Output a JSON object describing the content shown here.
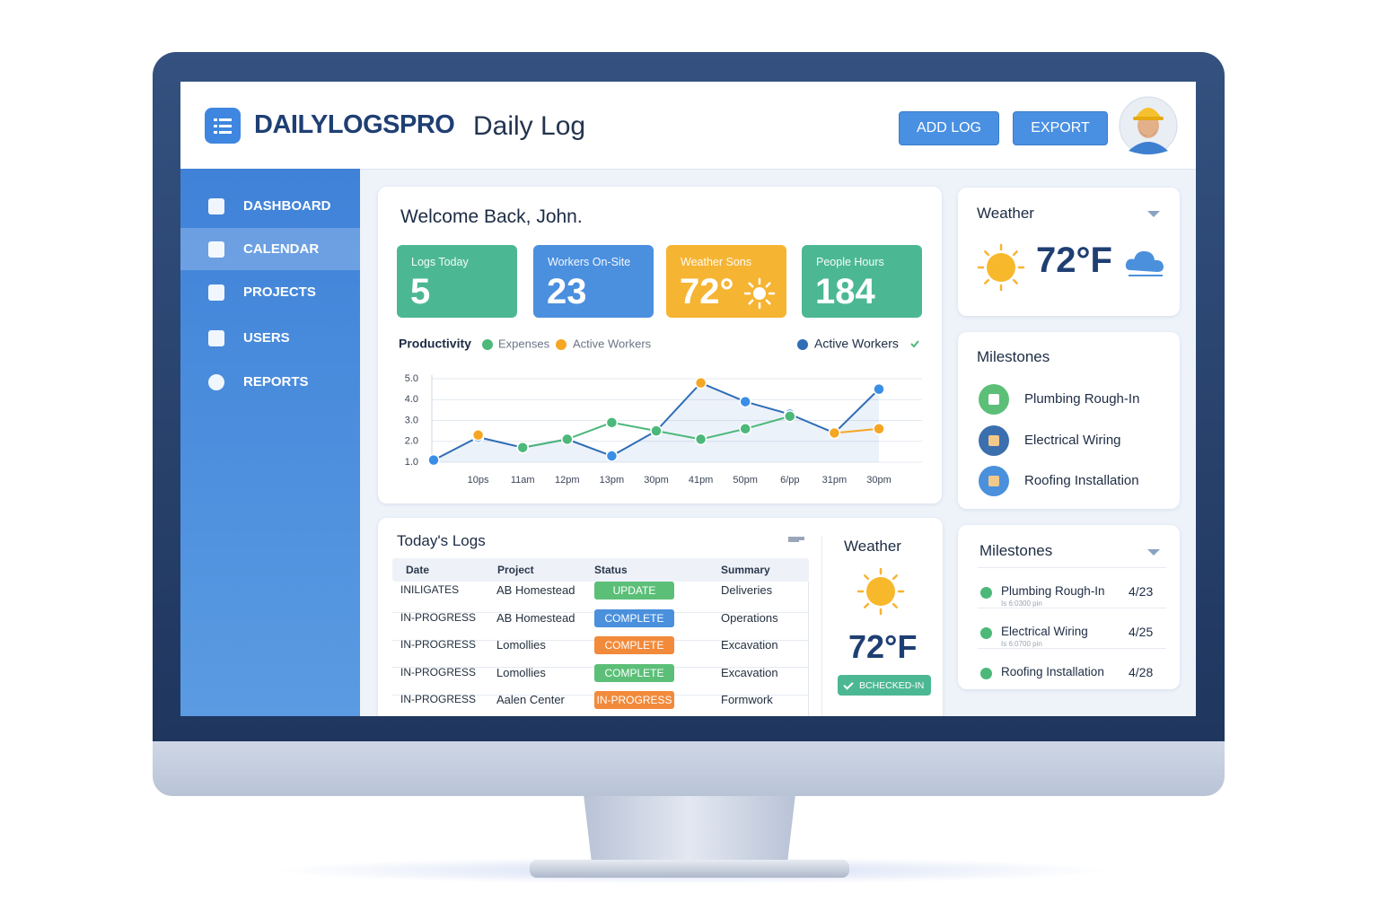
{
  "header": {
    "brand": "DAILYLOGSPRO",
    "title": "Daily Log",
    "buttons": [
      "ADD LOG",
      "EXPORT"
    ]
  },
  "sidebar": {
    "items": [
      "DASHBOARD",
      "CALENDAR",
      "PROJECTS",
      "USERS",
      "REPORTS"
    ]
  },
  "overview": {
    "greeting": "Welcome Back, John.",
    "stats": [
      {
        "label": "Logs Today",
        "value": 5,
        "color": "#4cb893"
      },
      {
        "label": "Workers On-Site",
        "value": 23,
        "color": "#4b8fdf"
      },
      {
        "label": "Weather Sons",
        "value": "72°",
        "color": "#f6b433"
      },
      {
        "label": "People Hours",
        "value": 184,
        "color": "#4cb893"
      }
    ]
  },
  "chart_data": {
    "type": "line",
    "title": "Productivity",
    "categories": [
      null,
      "10ps",
      "11am",
      "12pm",
      "13pm",
      "30pm",
      "41pm",
      "50pm",
      "6/pp",
      "31pm",
      "30pm"
    ],
    "series": [
      {
        "name": "Expenses",
        "color": "#4cb87a",
        "values": [
          null,
          null,
          1.7,
          2.1,
          2.9,
          2.5,
          2.1,
          2.6,
          3.2,
          null,
          null
        ]
      },
      {
        "name": "Active Workers",
        "color": "#f5a623",
        "values": [
          null,
          2.3,
          null,
          null,
          null,
          null,
          4.8,
          null,
          null,
          2.4,
          2.6
        ]
      },
      {
        "name": "Active Workers",
        "color": "#2f6db5",
        "values": [
          1.1,
          2.2,
          1.7,
          2.1,
          1.3,
          2.5,
          4.8,
          3.9,
          3.3,
          2.4,
          4.5
        ]
      }
    ],
    "ylim": [
      1,
      5
    ],
    "yticks": [
      {
        "value": 1,
        "label": "1.0"
      },
      {
        "value": 2,
        "label": "2.0"
      },
      {
        "value": 3,
        "label": "3.0"
      },
      {
        "value": 4,
        "label": "4.0"
      },
      {
        "value": 5,
        "label": "5.0"
      }
    ],
    "grid": true
  },
  "logs": {
    "title": "Today's Logs",
    "columns": [
      "Date",
      "Project",
      "Status",
      "Summary"
    ],
    "rows": [
      {
        "cells": [
          "INILIGATES",
          "AB Homestead",
          "UPDATE",
          "Deliveries"
        ],
        "status_color": "#5cbf78"
      },
      {
        "cells": [
          "IN-PROGRESS",
          "AB Homestead",
          "COMPLETE",
          "Operations"
        ],
        "status_color": "#4a90dc"
      },
      {
        "cells": [
          "IN-PROGRESS",
          "Lomollies",
          "COMPLETE",
          "Excavation"
        ],
        "status_color": "#f28a3b"
      },
      {
        "cells": [
          "IN-PROGRESS",
          "Lomollies",
          "COMPLETE",
          "Excavation"
        ],
        "status_color": "#5cbf78"
      },
      {
        "cells": [
          "IN-PROGRESS",
          "Aalen Center",
          "IN-PROGRESS",
          "Formwork"
        ],
        "status_color": "#f28a3b"
      }
    ]
  },
  "weather_panel": {
    "title": "Weather",
    "temperature": "72°F",
    "badge": "BCHECKED-IN"
  },
  "weather_card": {
    "title": "Weather",
    "temperature": "72°F"
  },
  "milestones_card": {
    "title": "Milestones",
    "items": [
      "Plumbing Rough-In",
      "Electrical Wiring",
      "Roofing Installation"
    ]
  },
  "milestones_list": {
    "title": "Milestones",
    "items": [
      {
        "name": "Plumbing Rough-In",
        "note": "Is 6:0300 pin",
        "date": "4/23"
      },
      {
        "name": "Electrical Wiring",
        "note": "Is 6:0700 pin",
        "date": "4/25"
      },
      {
        "name": "Roofing Installation",
        "date": "4/28"
      }
    ]
  }
}
